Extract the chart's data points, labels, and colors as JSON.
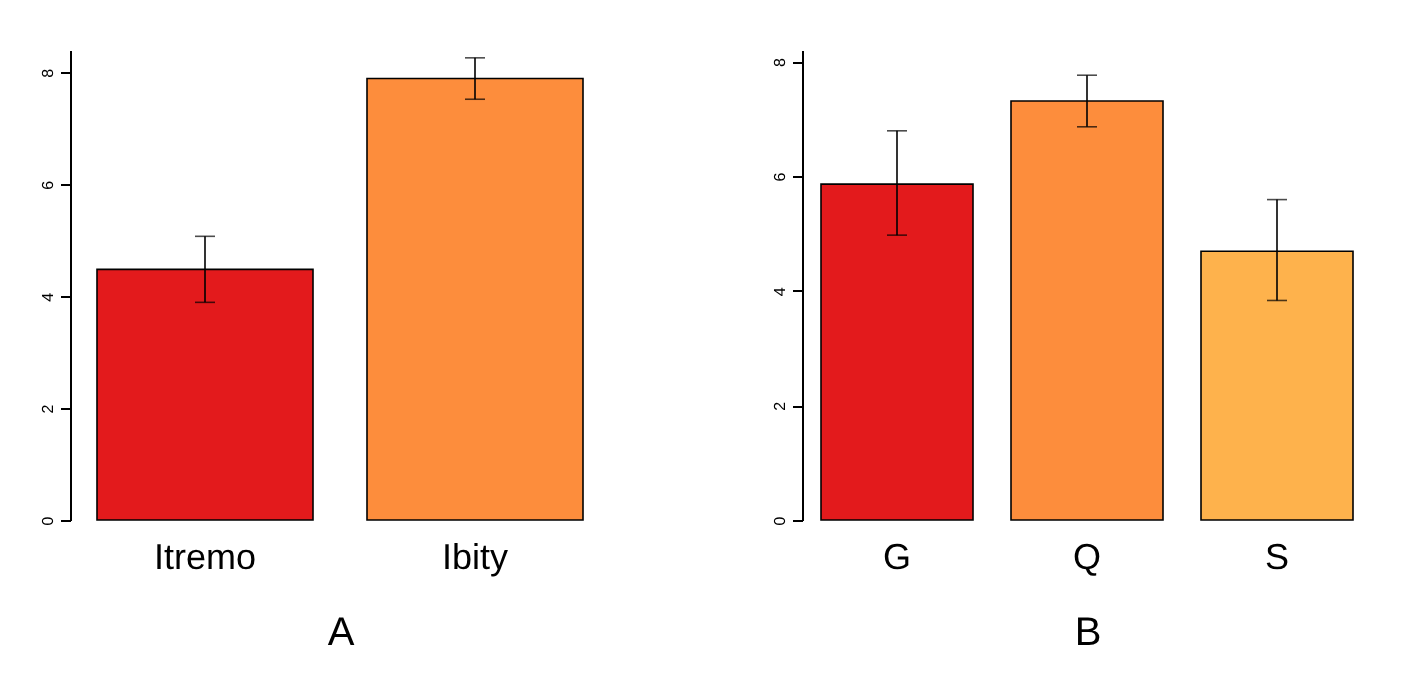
{
  "chart_data": [
    {
      "type": "bar",
      "xlabel": "A",
      "categories": [
        "Itremo",
        "Ibity"
      ],
      "values": [
        4.48,
        7.89
      ],
      "colors": [
        "#e31a1c",
        "#fd8d3c"
      ],
      "errors": [
        [
          3.89,
          5.07
        ],
        [
          7.52,
          8.26
        ]
      ],
      "ylim": [
        0,
        8.4
      ],
      "yticks": [
        0,
        2,
        4,
        6,
        8
      ],
      "grid": false
    },
    {
      "type": "bar",
      "xlabel": "B",
      "categories": [
        "G",
        "Q",
        "S"
      ],
      "values": [
        5.86,
        7.31,
        4.69
      ],
      "colors": [
        "#e31a1c",
        "#fd8d3c",
        "#feb24c"
      ],
      "errors": [
        [
          4.97,
          6.79
        ],
        [
          6.86,
          7.76
        ],
        [
          3.83,
          5.59
        ]
      ],
      "ylim": [
        0,
        8.2
      ],
      "yticks": [
        0,
        2,
        4,
        6,
        8
      ],
      "grid": false
    }
  ]
}
